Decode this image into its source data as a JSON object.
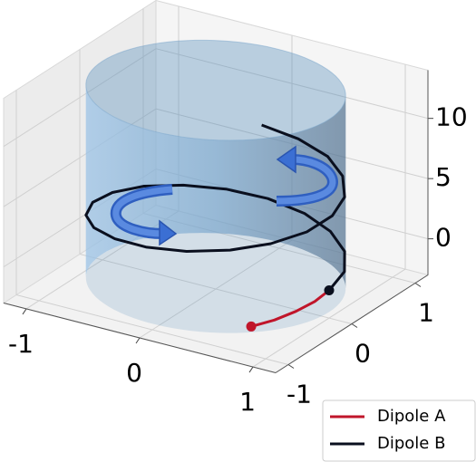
{
  "chart_data": {
    "type": "line3d",
    "series": [
      {
        "name": "Dipole A",
        "color": "#c0152a",
        "x": [
          0.71,
          0.83,
          0.92,
          0.98,
          1.0
        ],
        "y": [
          -0.71,
          -0.56,
          -0.38,
          -0.19,
          0.0
        ],
        "z": [
          -2.0,
          -1.68,
          -1.35,
          -1.03,
          -0.7
        ]
      },
      {
        "name": "Dipole B",
        "color": "#0a0f1e",
        "x": [
          1.0,
          0.95,
          0.79,
          0.54,
          0.24,
          -0.1,
          -0.42,
          -0.69,
          -0.89,
          -0.99,
          -0.98,
          -0.86,
          -0.65,
          -0.37,
          -0.05,
          0.28,
          0.58,
          0.81,
          0.96,
          1.0,
          0.93,
          0.75,
          0.5,
          0.18,
          -0.15
        ],
        "y": [
          0.0,
          0.33,
          0.62,
          0.84,
          0.97,
          1.0,
          0.91,
          0.72,
          0.46,
          0.14,
          -0.19,
          -0.51,
          -0.76,
          -0.93,
          -1.0,
          -0.96,
          -0.81,
          -0.58,
          -0.28,
          0.05,
          0.37,
          0.66,
          0.87,
          0.98,
          0.99
        ],
        "z": [
          -0.7,
          -0.38,
          -0.07,
          0.25,
          0.57,
          0.88,
          1.2,
          1.52,
          1.83,
          2.15,
          2.47,
          2.78,
          3.1,
          3.42,
          3.73,
          4.05,
          4.37,
          4.68,
          5.0,
          5.32,
          5.63,
          5.95,
          6.27,
          6.58,
          6.9
        ]
      }
    ],
    "surface": {
      "type": "cylinder",
      "radius": 1,
      "zlim": [
        -2.5,
        13.5
      ],
      "color": "#4a86b8"
    },
    "xlim": [
      -1.2,
      1.2
    ],
    "ylim": [
      -1.2,
      1.2
    ],
    "zlim": [
      -3,
      14
    ],
    "xticks": [
      -1,
      0,
      1
    ],
    "yticks": [
      -1,
      0,
      1
    ],
    "zticks": [
      0,
      5,
      10
    ],
    "grid": true,
    "legend": "lower right"
  }
}
